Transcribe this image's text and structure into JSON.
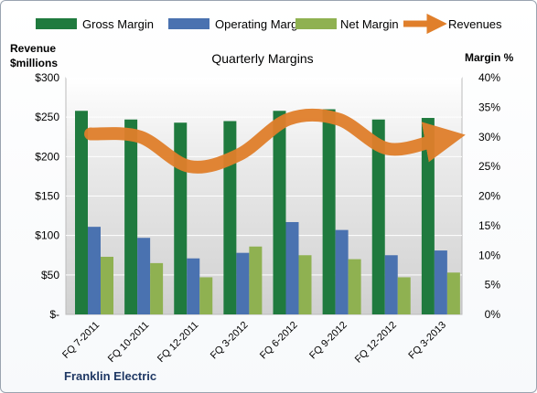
{
  "chart_data": {
    "type": "bar",
    "title": "Quarterly Margins",
    "company": "Franklin Electric",
    "left_axis_title_line1": "Revenue",
    "left_axis_title_line2": "$millions",
    "right_axis_title": "Margin %",
    "left_ylim": [
      0,
      300
    ],
    "right_ylim": [
      0,
      40
    ],
    "left_ticks": [
      "$-",
      "$50",
      "$100",
      "$150",
      "$200",
      "$250",
      "$300"
    ],
    "right_ticks": [
      "0%",
      "5%",
      "10%",
      "15%",
      "20%",
      "25%",
      "30%",
      "35%",
      "40%"
    ],
    "categories": [
      "FQ 7-2011",
      "FQ 10-2011",
      "FQ 12-2011",
      "FQ 3-2012",
      "FQ 6-2012",
      "FQ 9-2012",
      "FQ 12-2012",
      "FQ 3-2013"
    ],
    "series": [
      {
        "name": "Gross Margin",
        "axis": "left",
        "color": "#1f7a3e",
        "values": [
          258,
          247,
          243,
          245,
          258,
          260,
          247,
          249
        ]
      },
      {
        "name": "Operating Margin",
        "axis": "left",
        "color": "#4a72b0",
        "values": [
          111,
          97,
          71,
          78,
          117,
          107,
          75,
          81
        ]
      },
      {
        "name": "Net Margin",
        "axis": "left",
        "color": "#8fb151",
        "values": [
          73,
          65,
          47,
          86,
          75,
          70,
          47,
          53
        ]
      },
      {
        "name": "Revenues",
        "axis": "right",
        "color": "#e07f2b",
        "type": "line",
        "values": [
          30.5,
          30.0,
          25.0,
          27.0,
          33.0,
          33.0,
          28.0,
          29.5
        ]
      }
    ],
    "legend_position": "top",
    "grid": true
  }
}
